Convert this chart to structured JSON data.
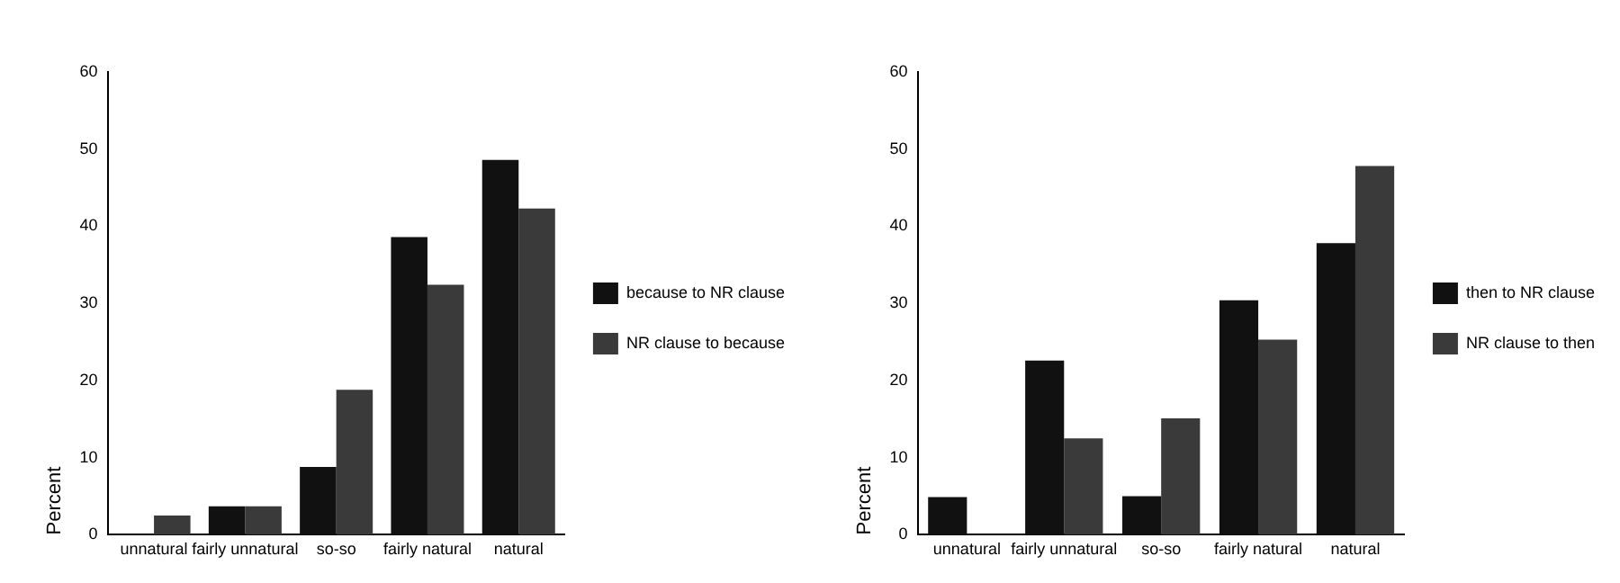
{
  "chart_data": [
    {
      "type": "bar",
      "ylabel": "Percent",
      "categories": [
        "unnatural",
        "fairly unnatural",
        "so-so",
        "fairly natural",
        "natural"
      ],
      "series": [
        {
          "name": "because to NR clause",
          "color": "#111111",
          "values": [
            null,
            3.7,
            8.8,
            38.6,
            48.6
          ]
        },
        {
          "name": "NR clause to because",
          "color": "#3a3a3a",
          "values": [
            2.5,
            3.7,
            18.8,
            32.4,
            42.3
          ]
        }
      ],
      "ylim": [
        0,
        60
      ],
      "yticks": [
        0,
        10,
        20,
        30,
        40,
        50,
        60
      ],
      "grid": false,
      "legend": "right"
    },
    {
      "type": "bar",
      "ylabel": "Percent",
      "categories": [
        "unnatural",
        "fairly unnatural",
        "so-so",
        "fairly natural",
        "natural"
      ],
      "series": [
        {
          "name": "then to NR clause",
          "color": "#111111",
          "values": [
            4.9,
            22.6,
            5,
            30.4,
            37.8
          ]
        },
        {
          "name": "NR clause to then",
          "color": "#3a3a3a",
          "values": [
            null,
            12.5,
            15.1,
            25.3,
            47.8
          ]
        }
      ],
      "ylim": [
        0,
        60
      ],
      "yticks": [
        0,
        10,
        20,
        30,
        40,
        50,
        60
      ],
      "grid": false,
      "legend": "right"
    }
  ]
}
